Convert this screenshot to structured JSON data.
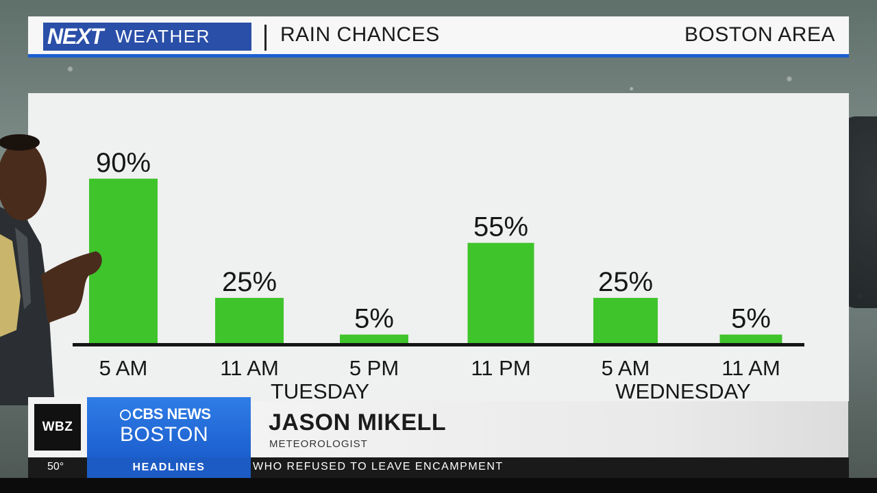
{
  "header": {
    "logo_next": "NEXT",
    "logo_weather": "WEATHER",
    "title": "RAIN CHANCES",
    "location": "BOSTON AREA"
  },
  "chart_data": {
    "type": "bar",
    "title": "RAIN CHANCES",
    "categories": [
      "5 AM",
      "11 AM",
      "5 PM",
      "11 PM",
      "5 AM",
      "11 AM"
    ],
    "values": [
      90,
      25,
      5,
      55,
      25,
      5
    ],
    "value_labels": [
      "90%",
      "25%",
      "5%",
      "55%",
      "25%",
      "5%"
    ],
    "groups": [
      {
        "label": "TUESDAY",
        "categories": [
          "5 AM",
          "11 AM",
          "5 PM"
        ]
      },
      {
        "label": "WEDNESDAY",
        "categories": [
          "11 PM",
          "5 AM",
          "11 AM"
        ]
      }
    ],
    "ylim": [
      0,
      100
    ],
    "bar_color": "#3fc42c",
    "grid": false,
    "xlabel": "",
    "ylabel": ""
  },
  "lower_third": {
    "station": "WBZ",
    "network_line1": "CBS NEWS",
    "network_line2": "BOSTON",
    "name": "JASON MIKELL",
    "role": "METEOROLOGIST"
  },
  "ticker": {
    "temperature": "50°",
    "section": "HEADLINES",
    "crawl_text": "WHO REFUSED TO LEAVE ENCAMPMENT"
  },
  "colors": {
    "accent_blue": "#1d5fd1",
    "bar_green": "#3fc42c",
    "panel_bg": "#eff0f0"
  }
}
